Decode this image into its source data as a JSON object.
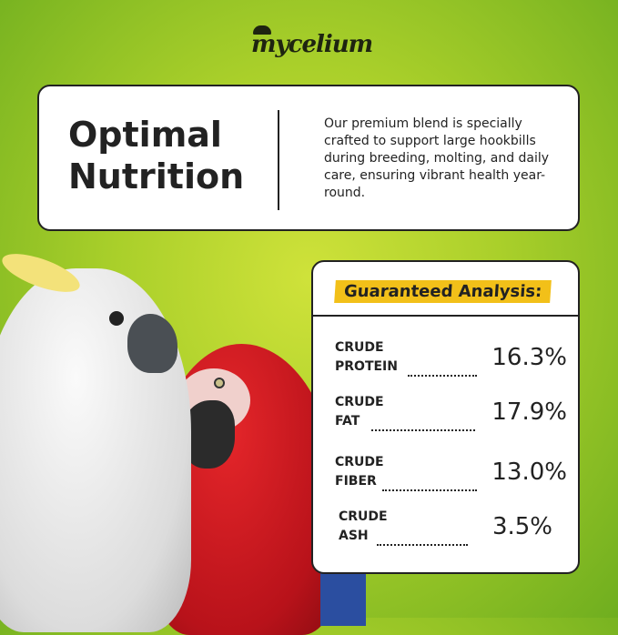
{
  "brand": {
    "logo": "mycelium"
  },
  "intro": {
    "title_line1": "Optimal",
    "title_line2": "Nutrition",
    "description": "Our premium blend is specially crafted to support large hookbills during breeding, molting, and daily care, ensuring vibrant health year-round."
  },
  "analysis": {
    "title": "Guaranteed Analysis:",
    "rows": [
      {
        "line1": "CRUDE",
        "line2": "PROTEIN",
        "value": "16.3%"
      },
      {
        "line1": "CRUDE",
        "line2": "FAT",
        "value": "17.9%"
      },
      {
        "line1": "CRUDE",
        "line2": "FIBER",
        "value": "13.0%"
      },
      {
        "line1": "CRUDE",
        "line2": "ASH",
        "value": "3.5%"
      }
    ]
  },
  "colors": {
    "accent": "#f2c019",
    "background": "#a9cf2a",
    "text": "#222222"
  }
}
